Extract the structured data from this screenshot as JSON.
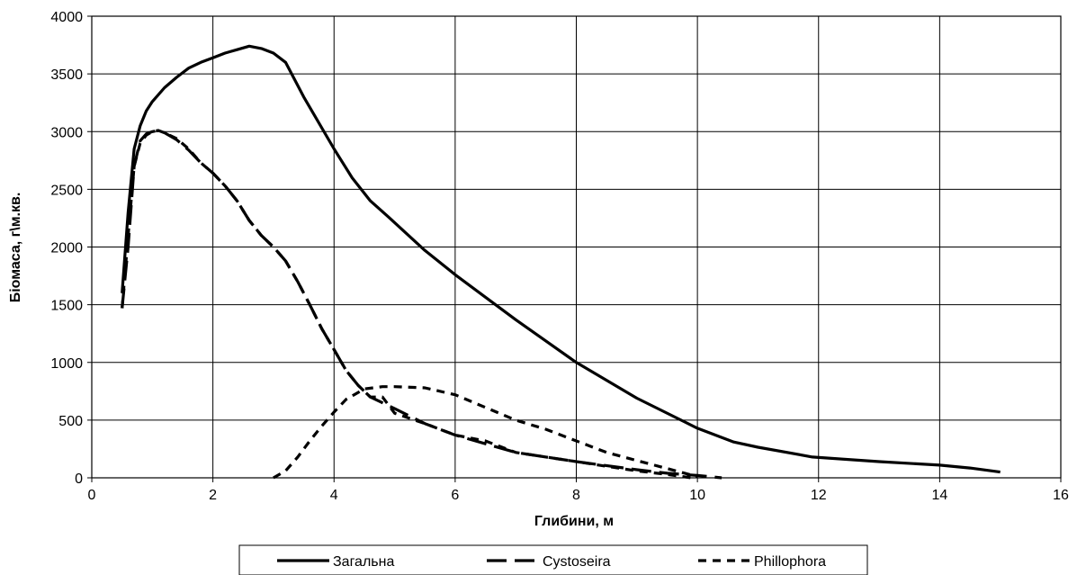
{
  "chart_data": {
    "type": "line",
    "title": "",
    "xlabel": "Глибини, м",
    "ylabel": "Біомаса, г\\м.кв.",
    "xlim": [
      0,
      16
    ],
    "ylim": [
      0,
      4000
    ],
    "xticks": [
      0,
      2,
      4,
      6,
      8,
      10,
      12,
      14,
      16
    ],
    "yticks": [
      0,
      500,
      1000,
      1500,
      2000,
      2500,
      3000,
      3500,
      4000
    ],
    "grid": true,
    "legend_position": "bottom",
    "series": [
      {
        "name": "Загальна",
        "style": "solid",
        "color": "#000000",
        "x": [
          0.5,
          0.6,
          0.7,
          0.8,
          0.9,
          1.0,
          1.2,
          1.4,
          1.6,
          1.8,
          2.0,
          2.2,
          2.4,
          2.6,
          2.8,
          3.0,
          3.2,
          3.5,
          4.0,
          4.3,
          4.6,
          4.9,
          5.5,
          6.0,
          7.0,
          8.0,
          9.0,
          10.0,
          10.6,
          11.0,
          11.9,
          13.0,
          14.0,
          14.5,
          15.0
        ],
        "y": [
          1600,
          2300,
          2850,
          3050,
          3180,
          3260,
          3380,
          3470,
          3550,
          3600,
          3640,
          3680,
          3710,
          3740,
          3720,
          3680,
          3600,
          3300,
          2850,
          2600,
          2400,
          2260,
          1970,
          1760,
          1370,
          1000,
          690,
          430,
          310,
          265,
          180,
          140,
          110,
          85,
          50
        ]
      },
      {
        "name": "Cystoseira",
        "style": "dashed-long",
        "color": "#000000",
        "x": [
          0.5,
          0.6,
          0.7,
          0.8,
          0.9,
          1.0,
          1.1,
          1.2,
          1.4,
          1.6,
          1.8,
          2.0,
          2.2,
          2.4,
          2.6,
          2.8,
          3.0,
          3.2,
          3.4,
          3.6,
          3.8,
          4.0,
          4.2,
          4.4,
          4.6,
          5.0,
          5.5,
          6.0,
          7.0,
          8.0,
          9.0,
          9.5,
          10.0,
          10.4
        ],
        "y": [
          1470,
          2000,
          2700,
          2920,
          2980,
          3000,
          3010,
          2990,
          2930,
          2840,
          2730,
          2640,
          2530,
          2400,
          2230,
          2100,
          2000,
          1880,
          1700,
          1500,
          1290,
          1110,
          930,
          800,
          700,
          600,
          470,
          370,
          220,
          140,
          70,
          40,
          20,
          0
        ]
      },
      {
        "name": "Phillophora",
        "style": "dashed-short",
        "color": "#000000",
        "x": [
          0.5,
          0.6,
          0.7,
          0.8,
          0.9,
          1.0,
          1.1,
          1.2,
          1.4,
          1.6,
          1.8,
          2.0,
          2.2,
          2.4,
          2.6,
          2.8,
          3.0,
          3.2,
          3.4,
          3.6,
          3.8,
          4.0,
          4.2,
          4.4,
          4.6,
          4.8,
          5.0,
          5.5,
          6.0,
          6.5,
          7.0,
          7.5,
          8.0,
          8.5,
          9.0,
          9.5,
          9.9
        ],
        "y": [
          1470,
          2100,
          2700,
          2900,
          2970,
          3000,
          3010,
          2990,
          2940,
          2850,
          2730,
          2640,
          2530,
          2400,
          2230,
          2100,
          2000,
          1880,
          1700,
          1500,
          1290,
          1110,
          930,
          800,
          700,
          700,
          560,
          470,
          370,
          320,
          220,
          180,
          140,
          100,
          60,
          30,
          0
        ]
      },
      {
        "name": "Phillophora",
        "style": "dashed-short",
        "color": "#000000",
        "x": [
          3.0,
          3.2,
          3.4,
          3.6,
          3.8,
          4.0,
          4.2,
          4.5,
          4.8,
          5.0,
          5.5,
          6.0,
          6.5,
          7.0,
          7.5,
          8.0,
          8.5,
          9.0,
          9.5,
          10.0
        ],
        "y": [
          0,
          60,
          180,
          320,
          450,
          570,
          680,
          770,
          790,
          790,
          780,
          720,
          610,
          500,
          420,
          320,
          220,
          150,
          80,
          10
        ]
      }
    ],
    "legend": [
      {
        "name": "Загальна",
        "style": "solid"
      },
      {
        "name": "Cystoseira",
        "style": "dashed-long"
      },
      {
        "name": "Phillophora",
        "style": "dashed-short"
      }
    ]
  }
}
